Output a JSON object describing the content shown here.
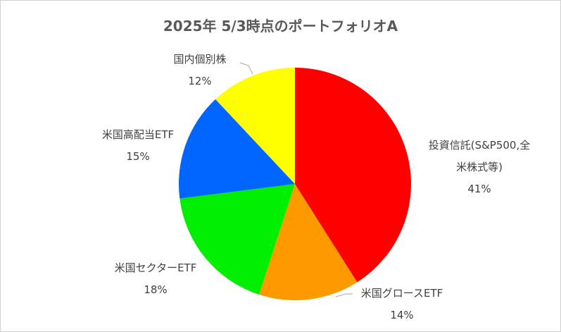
{
  "chart_data": {
    "type": "pie",
    "title": "2025年 5/3時点のポートフォリオA",
    "categories": [
      "投資信託(S&P500,全米株式等)",
      "米国グロースETF",
      "米国セクターETF",
      "米国高配当ETF",
      "国内個別株"
    ],
    "values": [
      41,
      14,
      18,
      15,
      12
    ],
    "value_labels": [
      "41%",
      "14%",
      "18%",
      "15%",
      "12%"
    ],
    "colors": [
      "#ff0000",
      "#ff9900",
      "#00ee00",
      "#0066ff",
      "#ffff00"
    ]
  }
}
